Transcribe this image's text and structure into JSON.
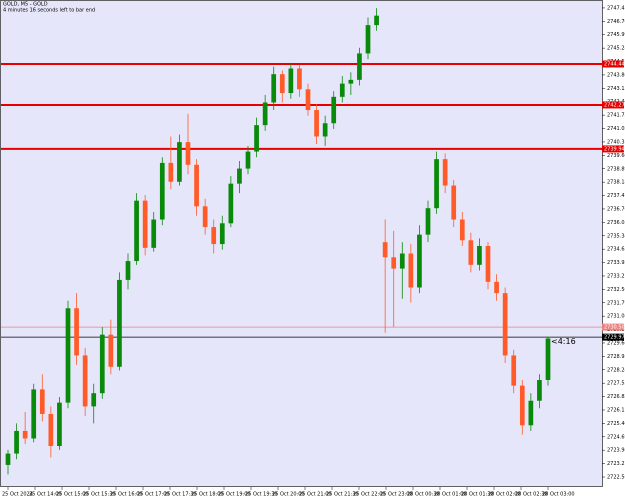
{
  "chart_data": {
    "type": "candlestick",
    "title": "GOLD, M5 - GOLD",
    "subtitle": "4 minutes 16 seconds left to bar end",
    "countdown": "<4:16",
    "bull_color": "#0a8a0a",
    "bear_color": "#ff5a28",
    "open": [
      2723.2,
      2723.8,
      2725.0,
      2724.6,
      2727.2,
      2725.9,
      2724.2,
      2726.5,
      2731.5,
      2729.0,
      2726.3,
      2727.0,
      2730.1,
      2728.4,
      2733.0,
      2734.0,
      2737.2,
      2734.7,
      2736.2,
      2739.2,
      2738.2,
      2740.3,
      2739.1,
      2736.9,
      2735.8,
      2734.9,
      2736.0,
      2738.1,
      2738.9,
      2739.8,
      2741.2,
      2742.4,
      2743.9,
      2742.9,
      2744.2,
      2743.1,
      2742.0,
      2740.6,
      2741.3,
      2742.7,
      2743.4,
      2743.6,
      2745.0,
      2746.5,
      2735.0,
      2734.2,
      2733.6,
      2734.4,
      2732.6,
      2735.4,
      2736.8,
      2739.4,
      2738.0,
      2736.2,
      2735.1,
      2733.8,
      2734.8,
      2732.9,
      2732.3,
      2729.0,
      2727.4,
      2725.3,
      2726.6,
      2727.7
    ],
    "high": [
      2724.0,
      2725.4,
      2726.0,
      2727.5,
      2728.0,
      2726.3,
      2726.8,
      2731.9,
      2732.3,
      2729.4,
      2727.5,
      2730.5,
      2730.9,
      2733.4,
      2734.4,
      2737.6,
      2737.5,
      2736.6,
      2739.5,
      2740.6,
      2740.7,
      2741.8,
      2739.4,
      2737.3,
      2736.2,
      2736.4,
      2738.5,
      2739.3,
      2740.1,
      2741.6,
      2742.8,
      2744.3,
      2744.1,
      2744.5,
      2744.4,
      2743.4,
      2742.3,
      2741.7,
      2743.0,
      2743.8,
      2744.0,
      2745.3,
      2746.9,
      2747.4,
      2736.2,
      2735.6,
      2735.0,
      2734.9,
      2735.9,
      2737.2,
      2739.8,
      2739.7,
      2738.3,
      2736.6,
      2735.5,
      2735.2,
      2735.0,
      2733.3,
      2732.6,
      2729.3,
      2727.7,
      2727.0,
      2728.0,
      2730.0
    ],
    "low": [
      2722.7,
      2723.5,
      2724.3,
      2724.4,
      2725.5,
      2723.6,
      2724.0,
      2726.2,
      2728.5,
      2725.8,
      2725.4,
      2726.7,
      2728.0,
      2728.2,
      2732.5,
      2733.8,
      2734.3,
      2734.5,
      2735.9,
      2737.8,
      2738.0,
      2738.6,
      2736.4,
      2735.4,
      2734.4,
      2734.6,
      2735.8,
      2737.6,
      2738.6,
      2739.5,
      2740.9,
      2742.0,
      2742.4,
      2742.6,
      2742.7,
      2741.7,
      2740.2,
      2740.1,
      2741.0,
      2742.4,
      2742.8,
      2743.3,
      2744.7,
      2746.2,
      2730.2,
      2730.5,
      2732.0,
      2731.8,
      2732.3,
      2735.0,
      2736.5,
      2737.6,
      2735.8,
      2734.8,
      2733.4,
      2733.5,
      2732.5,
      2731.9,
      2728.6,
      2727.0,
      2724.8,
      2725.0,
      2726.2,
      2727.4
    ],
    "close": [
      2723.8,
      2725.0,
      2724.6,
      2727.2,
      2725.9,
      2724.2,
      2726.5,
      2731.5,
      2729.0,
      2726.3,
      2727.0,
      2730.1,
      2728.4,
      2733.0,
      2734.0,
      2737.2,
      2734.7,
      2736.2,
      2739.2,
      2738.2,
      2740.3,
      2739.1,
      2736.9,
      2735.8,
      2734.9,
      2736.0,
      2738.1,
      2738.9,
      2739.8,
      2741.2,
      2742.4,
      2743.9,
      2742.9,
      2744.2,
      2743.1,
      2742.0,
      2740.6,
      2741.3,
      2742.7,
      2743.4,
      2743.6,
      2745.0,
      2746.5,
      2747.0,
      2734.2,
      2733.6,
      2734.4,
      2732.6,
      2735.4,
      2736.8,
      2739.4,
      2738.0,
      2736.2,
      2735.1,
      2733.8,
      2734.8,
      2732.9,
      2732.3,
      2729.0,
      2727.4,
      2725.3,
      2726.6,
      2727.7,
      2729.9
    ],
    "ylim": [
      2722.03,
      2747.83
    ],
    "yticks": [
      2747.41,
      {
        "value": 2746.7,
        "label": "2746.70"
      },
      2745.99,
      2745.28,
      2744.57,
      2743.86,
      2743.15,
      2742.44,
      2741.73,
      2741.02,
      2740.31,
      {
        "value": 2739.6,
        "label": "2739.60"
      },
      2738.89,
      2738.18,
      2737.47,
      2736.76,
      2736.05,
      2735.34,
      2734.63,
      2733.92,
      2733.21,
      {
        "value": 2732.5,
        "label": "2732.50"
      },
      2731.79,
      2731.08,
      2730.37,
      2729.66,
      2728.95,
      2728.24,
      2727.53,
      2726.82,
      2726.11,
      {
        "value": 2725.4,
        "label": "2725.40"
      },
      2724.69,
      2723.98,
      2723.27,
      2722.56
    ],
    "x_labels": [
      "25 Oct 2024",
      "25 Oct 14:00",
      "25 Oct 15:00",
      "25 Oct 15:30",
      "25 Oct 16:00",
      "25 Oct 17:00",
      "25 Oct 17:30",
      "25 Oct 18:00",
      "25 Oct 19:00",
      "25 Oct 19:30",
      "25 Oct 20:00",
      "25 Oct 21:00",
      "25 Oct 21:30",
      "25 Oct 22:00",
      "25 Oct 23:00",
      "28 Oct 00:30",
      "28 Oct 01:00",
      "28 Oct 01:30",
      "28 Oct 02:00",
      "28 Oct 02:30",
      "28 Oct 03:00"
    ],
    "hlines": [
      {
        "value": 2744.44,
        "label": "2744.44",
        "color": "#e60000",
        "width": 2
      },
      {
        "value": 2742.27,
        "label": "2742.27",
        "color": "#e60000",
        "width": 2
      },
      {
        "value": 2739.94,
        "label": "2739.94",
        "color": "#e60000",
        "width": 2
      },
      {
        "value": 2730.5,
        "label": "2730.50",
        "color": "#f08080",
        "width": 0.7
      },
      {
        "value": 2729.97,
        "label": "2729.97",
        "color": "#000000",
        "width": 0.7
      }
    ]
  }
}
